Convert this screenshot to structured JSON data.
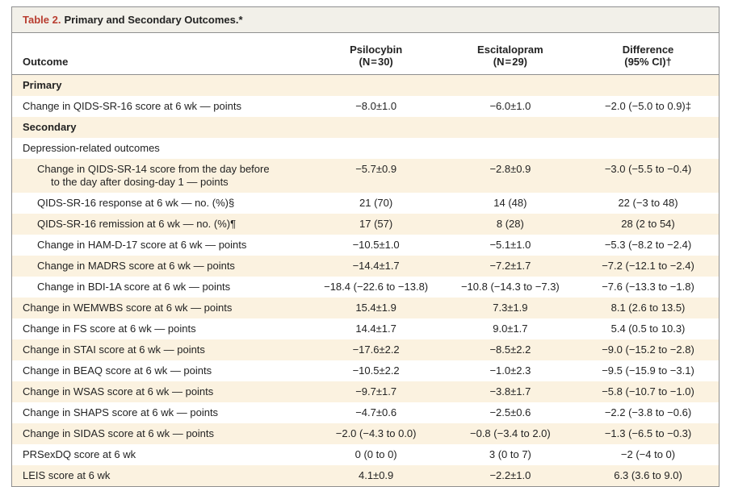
{
  "table": {
    "title_label": "Table 2.",
    "title_text": "Primary and Secondary Outcomes.*",
    "columns": {
      "outcome": "Outcome",
      "psilocybin": [
        "Psilocybin",
        "(N = 30)"
      ],
      "escitalopram": [
        "Escitalopram",
        "(N = 29)"
      ],
      "difference": [
        "Difference",
        "(95% CI)†"
      ]
    },
    "rows": [
      {
        "type": "section",
        "outcome": "Primary"
      },
      {
        "type": "data",
        "indent": 0,
        "outcome": "Change in QIDS-SR-16 score at 6 wk — points",
        "psilocybin": "−8.0±1.0",
        "escitalopram": "−6.0±1.0",
        "difference": "−2.0 (−5.0 to 0.9)‡"
      },
      {
        "type": "section",
        "outcome": "Secondary"
      },
      {
        "type": "label",
        "outcome": "Depression-related outcomes"
      },
      {
        "type": "data",
        "indent": 1,
        "outcome": "Change in QIDS-SR-14 score from the day before",
        "outcome_line2": "to the day after dosing-day 1 — points",
        "psilocybin": "−5.7±0.9",
        "escitalopram": "−2.8±0.9",
        "difference": "−3.0 (−5.5 to −0.4)"
      },
      {
        "type": "data",
        "indent": 1,
        "outcome": "QIDS-SR-16 response at 6 wk — no. (%)§",
        "psilocybin": "21 (70)",
        "escitalopram": "14 (48)",
        "difference": "22 (−3 to 48)"
      },
      {
        "type": "data",
        "indent": 1,
        "outcome": "QIDS-SR-16 remission at 6 wk — no. (%)¶",
        "psilocybin": "17 (57)",
        "escitalopram": "8 (28)",
        "difference": "28 (2 to 54)"
      },
      {
        "type": "data",
        "indent": 1,
        "outcome": "Change in HAM-D-17 score at 6 wk — points",
        "psilocybin": "−10.5±1.0",
        "escitalopram": "−5.1±1.0",
        "difference": "−5.3 (−8.2 to −2.4)"
      },
      {
        "type": "data",
        "indent": 1,
        "outcome": "Change in MADRS score at 6 wk — points",
        "psilocybin": "−14.4±1.7",
        "escitalopram": "−7.2±1.7",
        "difference": "−7.2 (−12.1 to −2.4)"
      },
      {
        "type": "data",
        "indent": 1,
        "outcome": "Change in BDI-1A score at 6 wk — points",
        "psilocybin": "−18.4 (−22.6 to −13.8)",
        "escitalopram": "−10.8 (−14.3 to −7.3)",
        "difference": "−7.6 (−13.3 to −1.8)"
      },
      {
        "type": "data",
        "indent": 0,
        "outcome": "Change in WEMWBS score at 6 wk — points",
        "psilocybin": "15.4±1.9",
        "escitalopram": "7.3±1.9",
        "difference": "8.1 (2.6 to 13.5)"
      },
      {
        "type": "data",
        "indent": 0,
        "outcome": "Change in FS score at 6 wk — points",
        "psilocybin": "14.4±1.7",
        "escitalopram": "9.0±1.7",
        "difference": "5.4 (0.5 to 10.3)"
      },
      {
        "type": "data",
        "indent": 0,
        "outcome": "Change in STAI score at 6 wk — points",
        "psilocybin": "−17.6±2.2",
        "escitalopram": "−8.5±2.2",
        "difference": "−9.0 (−15.2 to −2.8)"
      },
      {
        "type": "data",
        "indent": 0,
        "outcome": "Change in BEAQ score at 6 wk — points",
        "psilocybin": "−10.5±2.2",
        "escitalopram": "−1.0±2.3",
        "difference": "−9.5 (−15.9 to −3.1)"
      },
      {
        "type": "data",
        "indent": 0,
        "outcome": "Change in WSAS score at 6 wk — points",
        "psilocybin": "−9.7±1.7",
        "escitalopram": "−3.8±1.7",
        "difference": "−5.8 (−10.7 to −1.0)"
      },
      {
        "type": "data",
        "indent": 0,
        "outcome": "Change in SHAPS score at 6 wk — points",
        "psilocybin": "−4.7±0.6",
        "escitalopram": "−2.5±0.6",
        "difference": "−2.2 (−3.8 to −0.6)"
      },
      {
        "type": "data",
        "indent": 0,
        "outcome": "Change in SIDAS score at 6 wk — points",
        "psilocybin": "−2.0 (−4.3 to 0.0)",
        "escitalopram": "−0.8 (−3.4 to 2.0)",
        "difference": "−1.3 (−6.5 to −0.3)"
      },
      {
        "type": "data",
        "indent": 0,
        "outcome": "PRSexDQ score at 6 wk",
        "psilocybin": "0 (0 to 0)",
        "escitalopram": "3 (0 to 7)",
        "difference": "−2 (−4 to 0)"
      },
      {
        "type": "data",
        "indent": 0,
        "outcome": "LEIS score at 6 wk",
        "psilocybin": "4.1±0.9",
        "escitalopram": "−2.2±1.0",
        "difference": "6.3 (3.6 to 9.0)"
      }
    ],
    "colors": {
      "accent_red": "#b83d30",
      "row_shade": "#fbf2e0",
      "title_band": "#f2f0e9",
      "border": "#8f8f8f",
      "text": "#232323"
    }
  }
}
